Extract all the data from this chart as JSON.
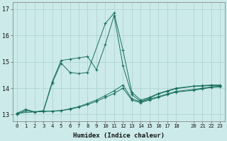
{
  "xlabel": "Humidex (Indice chaleur)",
  "bg_color": "#cceaea",
  "grid_color": "#aacfcf",
  "line_color": "#1a7060",
  "xmin": -0.5,
  "xmax": 23.5,
  "ymin": 12.75,
  "ymax": 17.25,
  "yticks": [
    13,
    14,
    15,
    16,
    17
  ],
  "xticks": [
    0,
    1,
    2,
    3,
    4,
    5,
    6,
    7,
    8,
    9,
    10,
    11,
    12,
    13,
    14,
    15,
    16,
    17,
    18,
    20,
    21,
    22,
    23
  ],
  "line1_x": [
    0,
    1,
    2,
    3,
    4,
    5,
    6,
    7,
    8,
    9,
    10,
    11,
    12,
    13,
    14,
    15,
    16,
    17,
    18,
    20,
    21,
    22,
    23
  ],
  "line1_y": [
    13.0,
    13.15,
    13.1,
    13.12,
    13.13,
    13.15,
    13.2,
    13.28,
    13.38,
    13.5,
    13.65,
    13.8,
    14.0,
    13.55,
    13.45,
    13.55,
    13.65,
    13.75,
    13.85,
    13.92,
    13.97,
    14.03,
    14.05
  ],
  "line2_x": [
    0,
    1,
    2,
    3,
    4,
    5,
    6,
    7,
    8,
    9,
    10,
    11,
    12,
    13,
    14,
    15,
    16,
    17,
    18,
    20,
    21,
    22,
    23
  ],
  "line2_y": [
    13.05,
    13.2,
    13.1,
    13.15,
    14.25,
    15.05,
    15.1,
    15.15,
    15.2,
    14.7,
    15.65,
    16.75,
    14.85,
    13.75,
    13.5,
    13.62,
    13.78,
    13.88,
    13.98,
    14.07,
    14.08,
    14.1,
    14.1
  ],
  "line3_x": [
    0,
    2,
    3,
    4,
    5,
    6,
    7,
    8,
    10,
    11,
    12,
    13,
    14,
    15,
    16,
    17,
    18,
    20,
    21,
    22,
    23
  ],
  "line3_y": [
    13.05,
    13.1,
    13.12,
    14.2,
    14.95,
    14.6,
    14.55,
    14.6,
    16.45,
    16.85,
    15.45,
    13.85,
    13.55,
    13.65,
    13.8,
    13.9,
    14.0,
    14.08,
    14.1,
    14.12,
    14.12
  ],
  "line4_x": [
    0,
    1,
    2,
    3,
    4,
    5,
    6,
    7,
    8,
    9,
    10,
    11,
    12,
    13,
    14,
    15,
    16,
    17,
    18,
    20,
    21,
    22,
    23
  ],
  "line4_y": [
    13.0,
    13.15,
    13.1,
    13.12,
    13.13,
    13.15,
    13.22,
    13.3,
    13.42,
    13.55,
    13.72,
    13.9,
    14.12,
    13.6,
    13.48,
    13.58,
    13.68,
    13.78,
    13.88,
    13.95,
    14.0,
    14.05,
    14.07
  ]
}
